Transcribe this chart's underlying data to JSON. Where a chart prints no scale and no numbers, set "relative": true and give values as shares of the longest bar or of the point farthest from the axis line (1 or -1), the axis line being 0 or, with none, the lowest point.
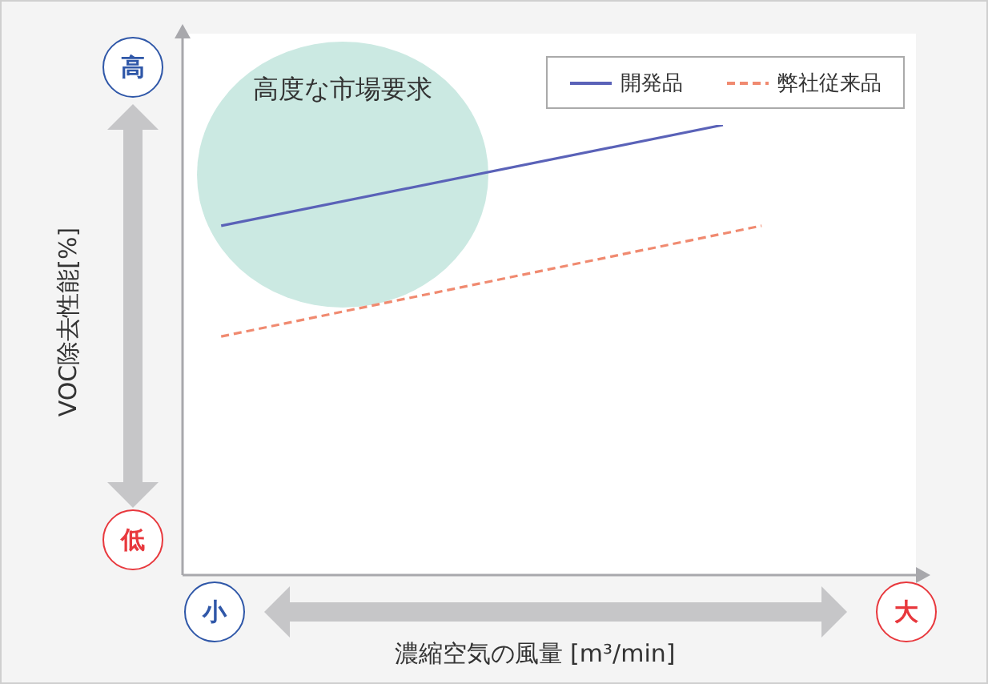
{
  "chart_data": {
    "type": "line",
    "relative": true,
    "xlabel": "濃縮空気の風量 [m³/min]",
    "ylabel": "VOC除去性能[%]",
    "annotations": [
      "高度な市場要求",
      "高",
      "低",
      "小",
      "大"
    ],
    "categories": [
      null,
      null,
      null,
      null,
      null,
      null,
      null,
      null,
      null,
      null,
      null,
      null,
      null,
      null,
      null,
      null,
      null,
      null,
      null,
      null
    ],
    "series": [
      {
        "name": "開発品",
        "color": "#5a62b8",
        "line_style": "solid",
        "values": [
          null,
          0.776,
          null,
          null,
          null,
          null,
          null,
          null,
          null,
          null,
          null,
          null,
          null,
          null,
          1,
          null,
          null,
          null,
          null,
          null
        ]
      },
      {
        "name": "弊社従来品",
        "color": "#f08a70",
        "line_style": "dashed",
        "values": [
          null,
          0.53,
          null,
          null,
          null,
          null,
          null,
          null,
          null,
          null,
          null,
          null,
          null,
          null,
          null,
          0.776,
          null,
          null,
          null,
          null
        ]
      }
    ],
    "legend": "top right",
    "marker": "none"
  }
}
